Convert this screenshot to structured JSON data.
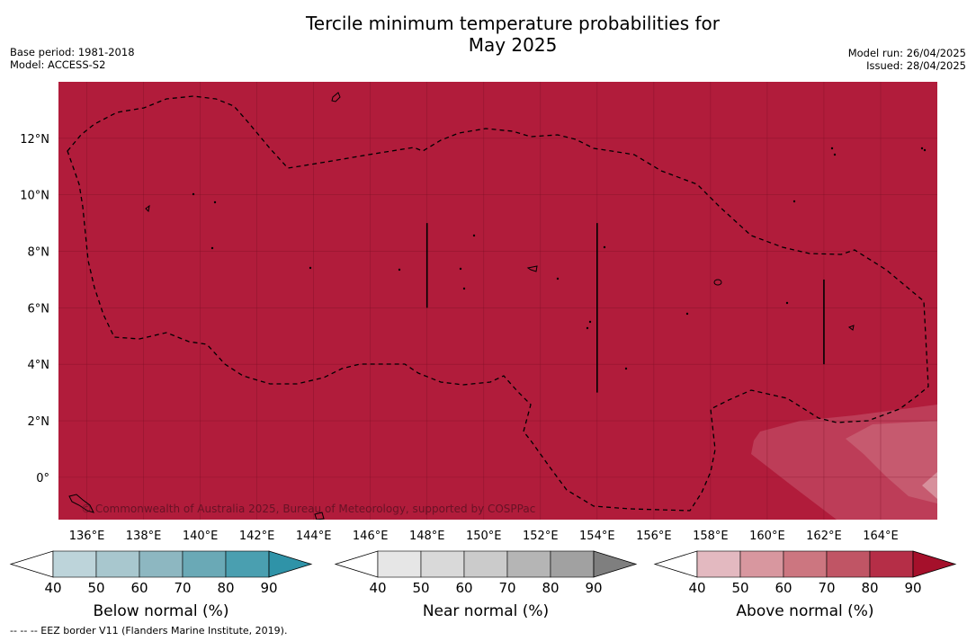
{
  "header": {
    "title_line1": "Tercile minimum temperature probabilities for",
    "title_line2": "May 2025",
    "base_period": "Base period: 1981-2018",
    "model": "Model: ACCESS-S2",
    "model_run": "Model run: 26/04/2025",
    "issued": "Issued: 28/04/2025"
  },
  "map": {
    "lon_range": [
      135,
      166
    ],
    "lat_range": [
      -1.5,
      14
    ],
    "lon_ticks": [
      "136°E",
      "138°E",
      "140°E",
      "142°E",
      "144°E",
      "146°E",
      "148°E",
      "150°E",
      "152°E",
      "154°E",
      "156°E",
      "158°E",
      "160°E",
      "162°E",
      "164°E"
    ],
    "lat_ticks": [
      "12°N",
      "10°N",
      "8°N",
      "6°N",
      "4°N",
      "2°N",
      "0°"
    ],
    "fill_category": "Above normal",
    "fill_probability_range": "80-90",
    "background_color": "#b11c3b",
    "copyright": "© Commonwealth of Australia 2025, Bureau of Meteorology, supported by COSPPac",
    "eez_border_style": "dashed"
  },
  "legends": [
    {
      "label": "Below normal (%)",
      "ticks": [
        "40",
        "50",
        "60",
        "70",
        "80",
        "90"
      ],
      "colors": [
        "#ffffff",
        "#bdd4da",
        "#a8c7ce",
        "#8db7c1",
        "#6aa9b6",
        "#4a9fb0",
        "#2f93a8"
      ]
    },
    {
      "label": "Near normal (%)",
      "ticks": [
        "40",
        "50",
        "60",
        "70",
        "80",
        "90"
      ],
      "colors": [
        "#ffffff",
        "#e6e6e6",
        "#d9d9d9",
        "#cbcbcb",
        "#b5b5b5",
        "#a1a1a1",
        "#7f7f7f"
      ]
    },
    {
      "label": "Above normal (%)",
      "ticks": [
        "40",
        "50",
        "60",
        "70",
        "80",
        "90"
      ],
      "colors": [
        "#ffffff",
        "#e3b9c0",
        "#d8979f",
        "#cc7680",
        "#c05565",
        "#b52e47",
        "#a5102b"
      ]
    }
  ],
  "footnote": "--  --  -- EEZ border V11 (Flanders Marine Institute, 2019)."
}
